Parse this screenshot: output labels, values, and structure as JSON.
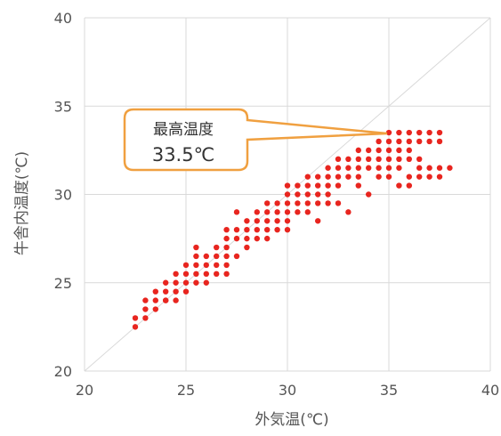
{
  "chart_data": {
    "type": "scatter",
    "title": "",
    "xlabel": "外気温(℃)",
    "ylabel": "牛舎内温度(℃)",
    "xlim": [
      20,
      40
    ],
    "ylim": [
      20,
      40
    ],
    "x_ticks": [
      "20",
      "25",
      "30",
      "35",
      "40"
    ],
    "y_ticks": [
      "20",
      "25",
      "30",
      "35",
      "40"
    ],
    "grid": true,
    "reference_line": {
      "type": "y=x",
      "color": "#d9d9d9"
    },
    "point_color": "#e8251f",
    "annotation": {
      "label": "最高温度",
      "value": "33.5℃",
      "border_color": "#f0a040",
      "points_to": {
        "x": 35,
        "y": 33.5
      }
    },
    "series": [
      {
        "points": [
          [
            22.5,
            23
          ],
          [
            23,
            23
          ],
          [
            23,
            23.5
          ],
          [
            23.5,
            23.5
          ],
          [
            23,
            24
          ],
          [
            23.5,
            24
          ],
          [
            24,
            24
          ],
          [
            23.5,
            24.5
          ],
          [
            24,
            24.5
          ],
          [
            24.5,
            24.5
          ],
          [
            24,
            25
          ],
          [
            24.5,
            25
          ],
          [
            25,
            25
          ],
          [
            25.5,
            25
          ],
          [
            24,
            24
          ],
          [
            24.5,
            24
          ],
          [
            24.5,
            25.5
          ],
          [
            25,
            25.5
          ],
          [
            25.5,
            25.5
          ],
          [
            25,
            26
          ],
          [
            25.5,
            26
          ],
          [
            26,
            26
          ],
          [
            25.5,
            26.5
          ],
          [
            26,
            26.5
          ],
          [
            26.5,
            26.5
          ],
          [
            25.5,
            27
          ],
          [
            26,
            25
          ],
          [
            26.5,
            25.5
          ],
          [
            26,
            25.5
          ],
          [
            26.5,
            27
          ],
          [
            27,
            26.5
          ],
          [
            27,
            27
          ],
          [
            27,
            27.5
          ],
          [
            27.5,
            27.5
          ],
          [
            27,
            26
          ],
          [
            27.5,
            26.5
          ],
          [
            27,
            28
          ],
          [
            27.5,
            28
          ],
          [
            28,
            28
          ],
          [
            27.5,
            29
          ],
          [
            28,
            27.5
          ],
          [
            28,
            28.5
          ],
          [
            28.5,
            28.5
          ],
          [
            28.5,
            29
          ],
          [
            29,
            29
          ],
          [
            28.5,
            28
          ],
          [
            29,
            28.5
          ],
          [
            29,
            27.5
          ],
          [
            29,
            29.5
          ],
          [
            29.5,
            29.5
          ],
          [
            29.5,
            29
          ],
          [
            29.5,
            28.5
          ],
          [
            30,
            29
          ],
          [
            29.5,
            28
          ],
          [
            30,
            28
          ],
          [
            30,
            29.5
          ],
          [
            30,
            30
          ],
          [
            30.5,
            30
          ],
          [
            30,
            30.5
          ],
          [
            30.5,
            29.5
          ],
          [
            30.5,
            29
          ],
          [
            31,
            29.5
          ],
          [
            31,
            30
          ],
          [
            31,
            30.5
          ],
          [
            31.5,
            30.5
          ],
          [
            31,
            29
          ],
          [
            31.5,
            29.5
          ],
          [
            31.5,
            30
          ],
          [
            31.5,
            31
          ],
          [
            31,
            31
          ],
          [
            32,
            31
          ],
          [
            32,
            30.5
          ],
          [
            32,
            31.5
          ],
          [
            32.5,
            31.5
          ],
          [
            32,
            30
          ],
          [
            32.5,
            31
          ],
          [
            32.5,
            30.5
          ],
          [
            33,
            31.5
          ],
          [
            33,
            32
          ],
          [
            32.5,
            32
          ],
          [
            33.5,
            32
          ],
          [
            33,
            31
          ],
          [
            33.5,
            31
          ],
          [
            33.5,
            31.5
          ],
          [
            34,
            31.5
          ],
          [
            33,
            29
          ],
          [
            33.5,
            30.5
          ],
          [
            34,
            30
          ],
          [
            34,
            32
          ],
          [
            34,
            32.5
          ],
          [
            34.5,
            32.5
          ],
          [
            34.5,
            32
          ],
          [
            34.5,
            31.5
          ],
          [
            34.5,
            31
          ],
          [
            35,
            31
          ],
          [
            35,
            32
          ],
          [
            35,
            32.5
          ],
          [
            35,
            33
          ],
          [
            35.5,
            33
          ],
          [
            35.5,
            32.5
          ],
          [
            35,
            31.5
          ],
          [
            35.5,
            31.5
          ],
          [
            35.5,
            30.5
          ],
          [
            36,
            30.5
          ],
          [
            35.5,
            32
          ],
          [
            36,
            32.5
          ],
          [
            36,
            33
          ],
          [
            36.5,
            33
          ],
          [
            36,
            32
          ],
          [
            36.5,
            32
          ],
          [
            36.5,
            31.5
          ],
          [
            36.5,
            33.5
          ],
          [
            37,
            33.5
          ],
          [
            37,
            33
          ],
          [
            37.5,
            33
          ],
          [
            37.5,
            33.5
          ],
          [
            35.5,
            33.5
          ],
          [
            36,
            33.5
          ],
          [
            37,
            31.5
          ],
          [
            37,
            31
          ],
          [
            37.5,
            31.5
          ],
          [
            37.5,
            31
          ],
          [
            38,
            31.5
          ],
          [
            36.5,
            31
          ],
          [
            36,
            31
          ],
          [
            34.5,
            33
          ],
          [
            35,
            33.5
          ],
          [
            32,
            29.5
          ],
          [
            31.5,
            28.5
          ],
          [
            33.5,
            32.5
          ],
          [
            32.5,
            29.5
          ],
          [
            30.5,
            30.5
          ],
          [
            30,
            28.5
          ],
          [
            29,
            28
          ],
          [
            28.5,
            27.5
          ],
          [
            28,
            27
          ],
          [
            26.5,
            26
          ],
          [
            27,
            25.5
          ],
          [
            25,
            24.5
          ],
          [
            22.5,
            22.5
          ]
        ]
      }
    ]
  }
}
